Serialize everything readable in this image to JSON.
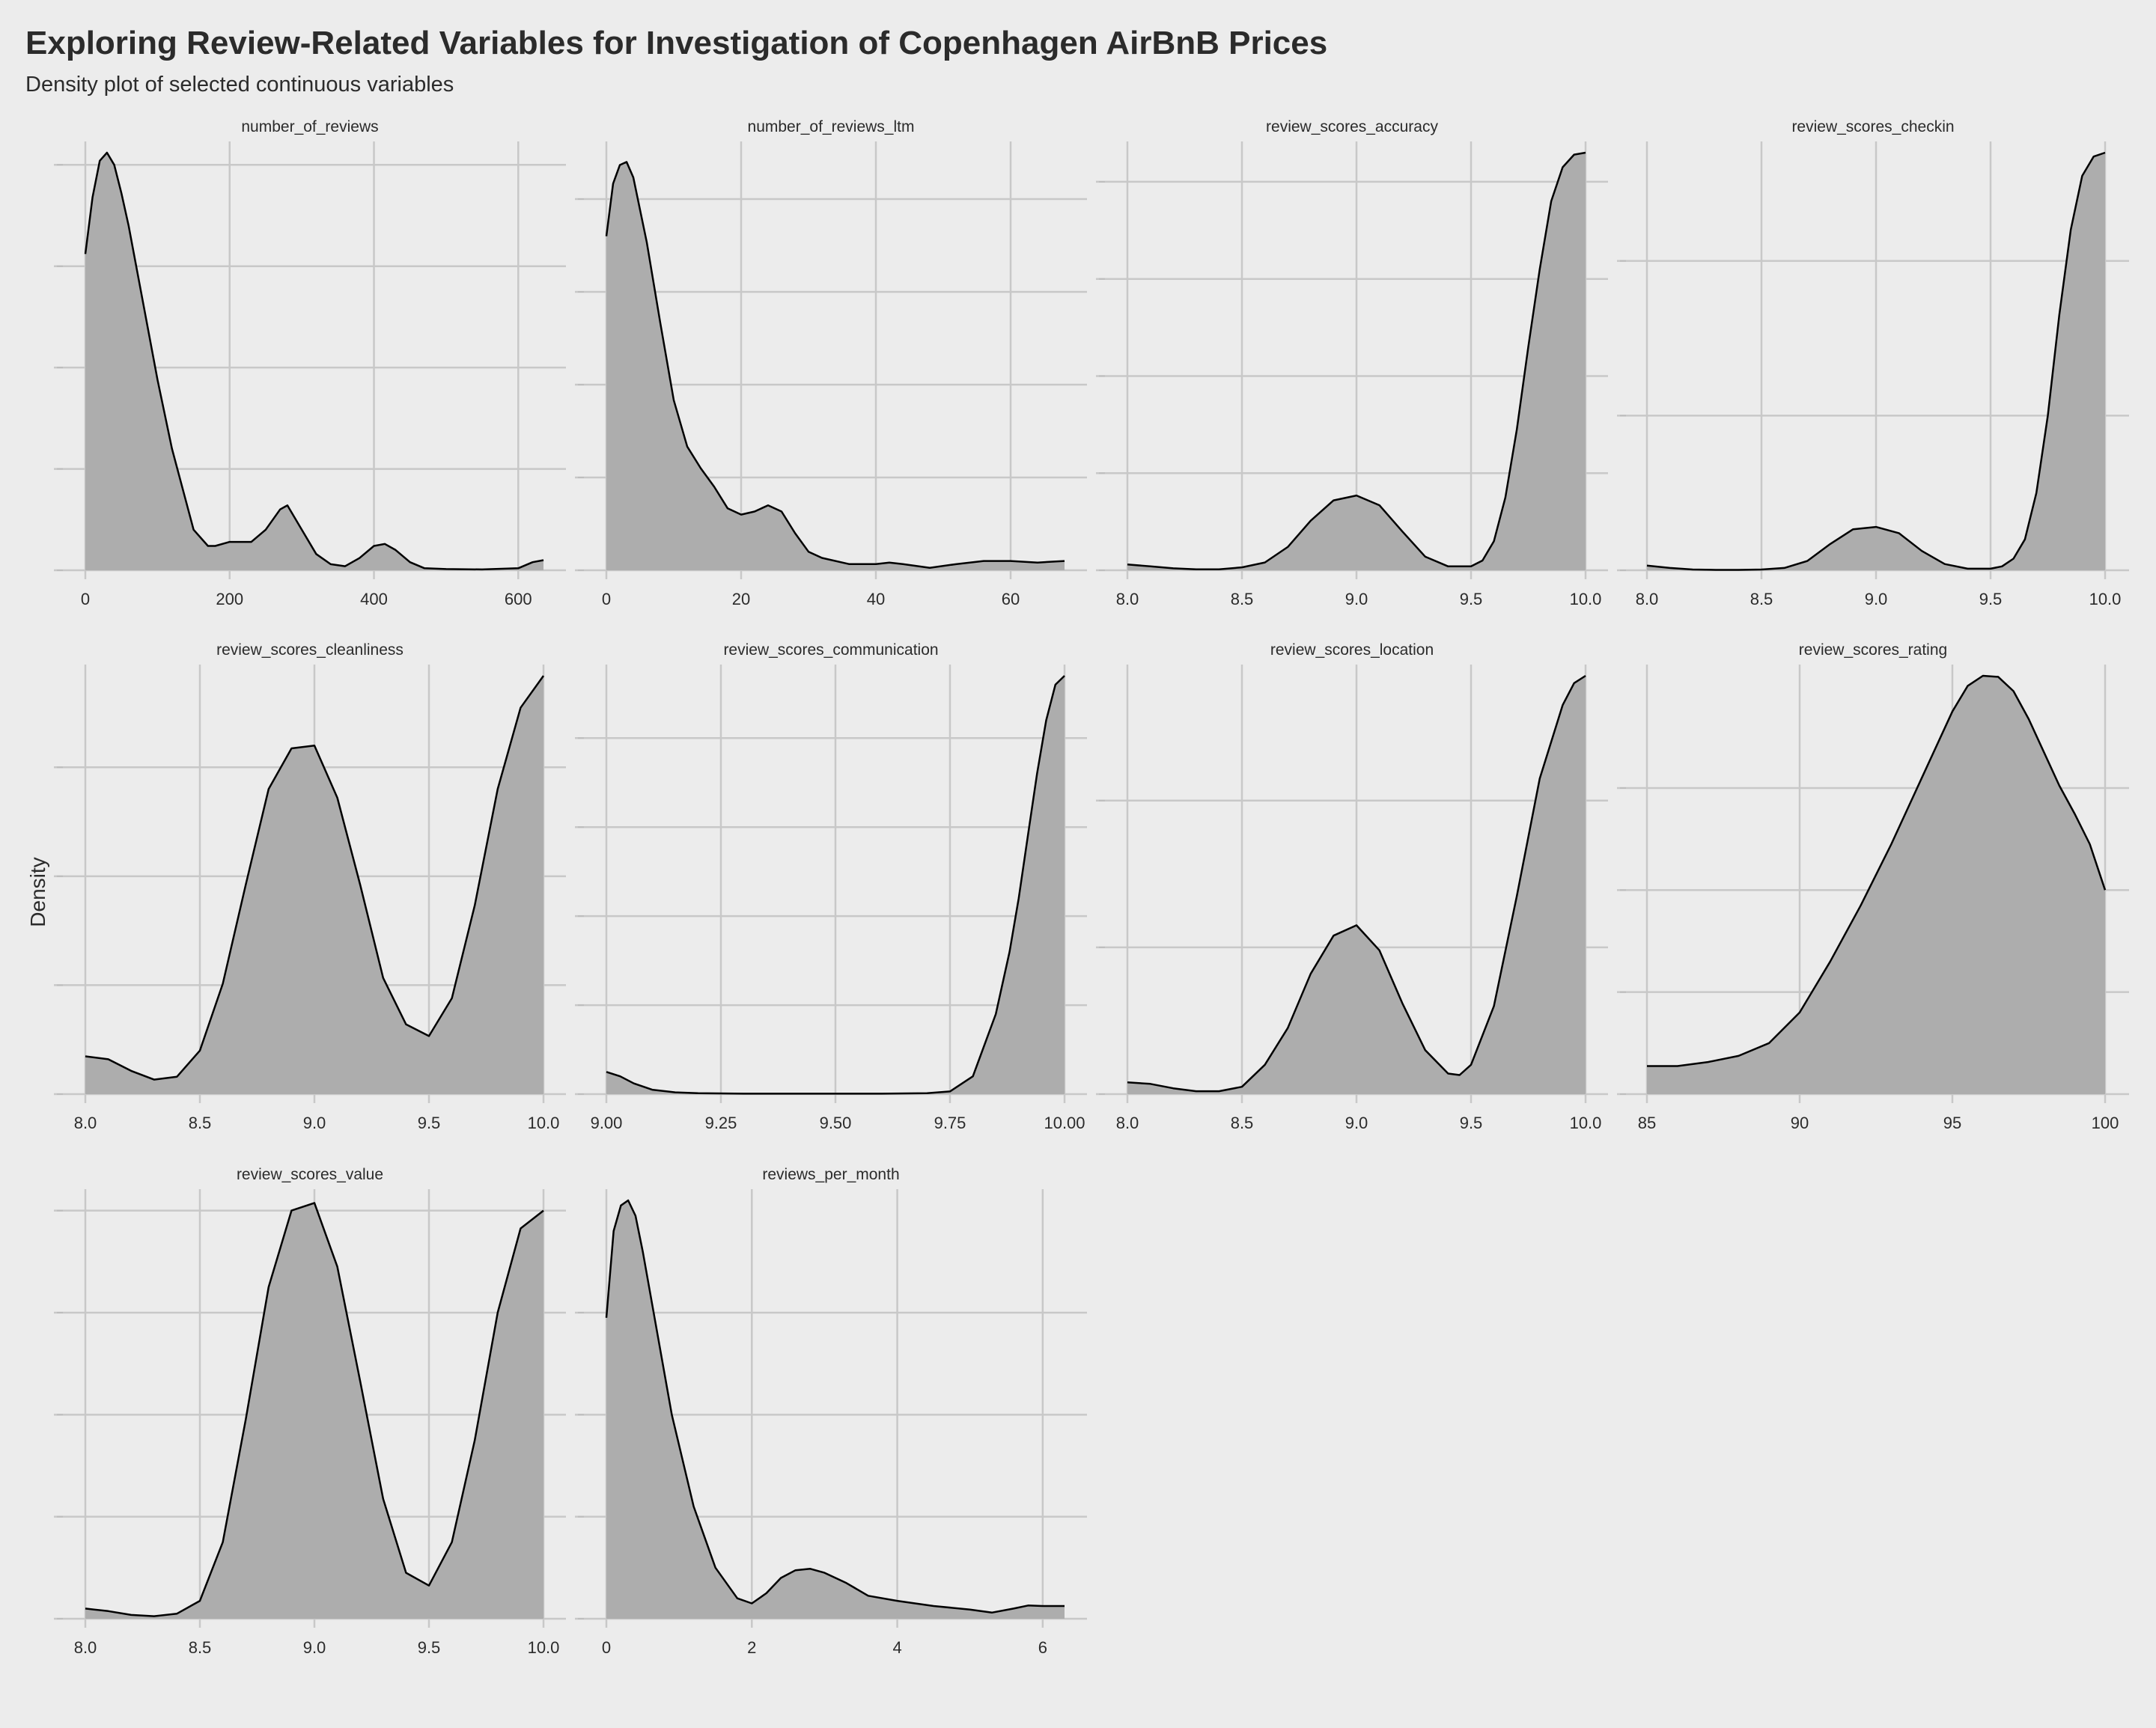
{
  "chart_data": {
    "type": "area",
    "title": "Exploring Review-Related Variables for Investigation of Copenhagen AirBnB Prices",
    "subtitle": "Density plot of selected continuous variables",
    "ylabel": "Density",
    "xlabel": "",
    "grid": true,
    "facets": [
      {
        "name": "number_of_reviews",
        "xlim": [
          0,
          635
        ],
        "ylim": [
          0,
          1.03
        ],
        "x_ticks": [
          0,
          200,
          400,
          600
        ],
        "x_tick_labels": [
          "0",
          "200",
          "400",
          "600"
        ],
        "y_gridlines": [
          0,
          0.25,
          0.5,
          0.75,
          1.0
        ],
        "x": [
          0,
          10,
          20,
          30,
          40,
          50,
          60,
          80,
          100,
          120,
          150,
          170,
          180,
          200,
          230,
          250,
          270,
          280,
          300,
          320,
          340,
          360,
          380,
          400,
          415,
          430,
          450,
          470,
          500,
          550,
          600,
          620,
          635
        ],
        "y": [
          0.78,
          0.92,
          1.01,
          1.03,
          1.0,
          0.93,
          0.85,
          0.66,
          0.47,
          0.3,
          0.1,
          0.06,
          0.06,
          0.07,
          0.07,
          0.1,
          0.15,
          0.16,
          0.1,
          0.04,
          0.015,
          0.01,
          0.03,
          0.06,
          0.065,
          0.05,
          0.02,
          0.005,
          0.003,
          0.002,
          0.005,
          0.02,
          0.025
        ]
      },
      {
        "name": "number_of_reviews_ltm",
        "xlim": [
          0,
          68
        ],
        "ylim": [
          0,
          0.135
        ],
        "x_ticks": [
          0,
          20,
          40,
          60
        ],
        "x_tick_labels": [
          "0",
          "20",
          "40",
          "60"
        ],
        "y_gridlines": [
          0,
          0.03,
          0.06,
          0.09,
          0.12
        ],
        "x": [
          0,
          1,
          2,
          3,
          4,
          6,
          8,
          10,
          12,
          14,
          16,
          18,
          20,
          22,
          24,
          26,
          28,
          30,
          32,
          36,
          40,
          42,
          44,
          48,
          52,
          56,
          60,
          64,
          68
        ],
        "y": [
          0.108,
          0.125,
          0.131,
          0.132,
          0.127,
          0.106,
          0.08,
          0.055,
          0.04,
          0.033,
          0.027,
          0.02,
          0.018,
          0.019,
          0.021,
          0.019,
          0.012,
          0.006,
          0.004,
          0.002,
          0.002,
          0.0025,
          0.002,
          0.0008,
          0.002,
          0.003,
          0.003,
          0.0025,
          0.003
        ]
      },
      {
        "name": "review_scores_accuracy",
        "xlim": [
          8,
          10
        ],
        "ylim": [
          0,
          4.3
        ],
        "x_ticks": [
          8,
          8.5,
          9,
          9.5,
          10
        ],
        "x_tick_labels": [
          "8.0",
          "8.5",
          "9.0",
          "9.5",
          "10.0"
        ],
        "y_gridlines": [
          0,
          1,
          2,
          3,
          4
        ],
        "x": [
          8.0,
          8.1,
          8.2,
          8.3,
          8.4,
          8.5,
          8.6,
          8.7,
          8.8,
          8.9,
          9.0,
          9.1,
          9.2,
          9.3,
          9.4,
          9.5,
          9.55,
          9.6,
          9.65,
          9.7,
          9.75,
          9.8,
          9.85,
          9.9,
          9.95,
          10.0
        ],
        "y": [
          0.06,
          0.04,
          0.02,
          0.01,
          0.01,
          0.03,
          0.08,
          0.24,
          0.51,
          0.72,
          0.77,
          0.67,
          0.4,
          0.14,
          0.04,
          0.04,
          0.1,
          0.3,
          0.75,
          1.45,
          2.3,
          3.1,
          3.8,
          4.15,
          4.28,
          4.3
        ]
      },
      {
        "name": "review_scores_checkin",
        "xlim": [
          8,
          10
        ],
        "ylim": [
          0,
          5.4
        ],
        "x_ticks": [
          8,
          8.5,
          9,
          9.5,
          10
        ],
        "x_tick_labels": [
          "8.0",
          "8.5",
          "9.0",
          "9.5",
          "10.0"
        ],
        "y_gridlines": [
          0,
          2,
          4
        ],
        "x": [
          8.0,
          8.1,
          8.2,
          8.3,
          8.4,
          8.5,
          8.6,
          8.7,
          8.8,
          8.9,
          9.0,
          9.1,
          9.2,
          9.3,
          9.4,
          9.5,
          9.55,
          9.6,
          9.65,
          9.7,
          9.75,
          9.8,
          9.85,
          9.9,
          9.95,
          10.0
        ],
        "y": [
          0.06,
          0.03,
          0.01,
          0.005,
          0.005,
          0.01,
          0.03,
          0.12,
          0.34,
          0.53,
          0.56,
          0.48,
          0.25,
          0.08,
          0.02,
          0.02,
          0.05,
          0.15,
          0.4,
          1.0,
          2.0,
          3.3,
          4.4,
          5.1,
          5.35,
          5.4
        ]
      },
      {
        "name": "review_scores_cleanliness",
        "xlim": [
          8,
          10
        ],
        "ylim": [
          0,
          1.44
        ],
        "x_ticks": [
          8,
          8.5,
          9,
          9.5,
          10
        ],
        "x_tick_labels": [
          "8.0",
          "8.5",
          "9.0",
          "9.5",
          "10.0"
        ],
        "y_gridlines": [
          0,
          0.375,
          0.75,
          1.125
        ],
        "x": [
          8.0,
          8.1,
          8.2,
          8.3,
          8.4,
          8.5,
          8.6,
          8.7,
          8.8,
          8.9,
          9.0,
          9.1,
          9.2,
          9.3,
          9.4,
          9.5,
          9.6,
          9.7,
          9.8,
          9.9,
          10.0
        ],
        "y": [
          0.13,
          0.12,
          0.08,
          0.05,
          0.06,
          0.15,
          0.38,
          0.72,
          1.05,
          1.19,
          1.2,
          1.02,
          0.72,
          0.4,
          0.24,
          0.2,
          0.33,
          0.65,
          1.05,
          1.33,
          1.44
        ]
      },
      {
        "name": "review_scores_communication",
        "xlim": [
          9,
          10
        ],
        "ylim": [
          0,
          4.7
        ],
        "x_ticks": [
          9,
          9.25,
          9.5,
          9.75,
          10
        ],
        "x_tick_labels": [
          "9.00",
          "9.25",
          "9.50",
          "9.75",
          "10.00"
        ],
        "y_gridlines": [
          0,
          1,
          2,
          3,
          4
        ],
        "x": [
          9.0,
          9.03,
          9.06,
          9.1,
          9.15,
          9.2,
          9.3,
          9.4,
          9.5,
          9.6,
          9.7,
          9.75,
          9.8,
          9.85,
          9.88,
          9.9,
          9.92,
          9.94,
          9.96,
          9.98,
          10.0
        ],
        "y": [
          0.25,
          0.2,
          0.12,
          0.05,
          0.02,
          0.01,
          0.005,
          0.005,
          0.005,
          0.005,
          0.01,
          0.03,
          0.2,
          0.9,
          1.6,
          2.2,
          2.9,
          3.6,
          4.2,
          4.6,
          4.7
        ]
      },
      {
        "name": "review_scores_location",
        "xlim": [
          8,
          10
        ],
        "ylim": [
          0,
          2.85
        ],
        "x_ticks": [
          8,
          8.5,
          9,
          9.5,
          10
        ],
        "x_tick_labels": [
          "8.0",
          "8.5",
          "9.0",
          "9.5",
          "10.0"
        ],
        "y_gridlines": [
          0,
          1,
          2
        ],
        "x": [
          8.0,
          8.1,
          8.2,
          8.3,
          8.4,
          8.5,
          8.6,
          8.7,
          8.8,
          8.9,
          9.0,
          9.1,
          9.2,
          9.3,
          9.4,
          9.45,
          9.5,
          9.6,
          9.7,
          9.8,
          9.9,
          9.95,
          10.0
        ],
        "y": [
          0.08,
          0.07,
          0.04,
          0.02,
          0.02,
          0.05,
          0.2,
          0.45,
          0.82,
          1.08,
          1.15,
          0.98,
          0.62,
          0.3,
          0.14,
          0.13,
          0.2,
          0.6,
          1.35,
          2.15,
          2.65,
          2.8,
          2.85
        ]
      },
      {
        "name": "review_scores_rating",
        "xlim": [
          85,
          100
        ],
        "ylim": [
          0,
          0.082
        ],
        "x_ticks": [
          85,
          90,
          95,
          100
        ],
        "x_tick_labels": [
          "85",
          "90",
          "95",
          "100"
        ],
        "y_gridlines": [
          0,
          0.02,
          0.04,
          0.06
        ],
        "x": [
          85,
          86,
          87,
          88,
          89,
          90,
          91,
          92,
          93,
          94,
          95,
          95.5,
          96,
          96.5,
          97,
          97.5,
          98,
          98.5,
          99,
          99.5,
          100
        ],
        "y": [
          0.0055,
          0.0055,
          0.0063,
          0.0075,
          0.01,
          0.016,
          0.026,
          0.037,
          0.049,
          0.062,
          0.075,
          0.08,
          0.082,
          0.0818,
          0.079,
          0.0735,
          0.067,
          0.0605,
          0.055,
          0.049,
          0.04
        ]
      },
      {
        "name": "review_scores_value",
        "xlim": [
          8,
          10
        ],
        "ylim": [
          0,
          1.64
        ],
        "x_ticks": [
          8,
          8.5,
          9,
          9.5,
          10
        ],
        "x_tick_labels": [
          "8.0",
          "8.5",
          "9.0",
          "9.5",
          "10.0"
        ],
        "y_gridlines": [
          0,
          0.4,
          0.8,
          1.2,
          1.6
        ],
        "x": [
          8.0,
          8.1,
          8.2,
          8.3,
          8.4,
          8.5,
          8.6,
          8.7,
          8.8,
          8.9,
          9.0,
          9.1,
          9.2,
          9.3,
          9.4,
          9.5,
          9.6,
          9.7,
          9.8,
          9.9,
          10.0
        ],
        "y": [
          0.04,
          0.03,
          0.015,
          0.01,
          0.02,
          0.07,
          0.3,
          0.78,
          1.3,
          1.6,
          1.63,
          1.38,
          0.93,
          0.47,
          0.18,
          0.13,
          0.3,
          0.7,
          1.2,
          1.53,
          1.6
        ]
      },
      {
        "name": "reviews_per_month",
        "xlim": [
          0,
          6.3
        ],
        "ylim": [
          0,
          0.82
        ],
        "x_ticks": [
          0,
          2,
          4,
          6
        ],
        "x_tick_labels": [
          "0",
          "2",
          "4",
          "6"
        ],
        "y_gridlines": [
          0,
          0.2,
          0.4,
          0.6
        ],
        "x": [
          0,
          0.1,
          0.2,
          0.3,
          0.4,
          0.5,
          0.7,
          0.9,
          1.2,
          1.5,
          1.8,
          2.0,
          2.2,
          2.4,
          2.6,
          2.8,
          3.0,
          3.3,
          3.6,
          4.0,
          4.5,
          5.0,
          5.3,
          5.6,
          5.8,
          6.0,
          6.3
        ],
        "y": [
          0.59,
          0.76,
          0.81,
          0.82,
          0.79,
          0.72,
          0.56,
          0.4,
          0.22,
          0.1,
          0.04,
          0.03,
          0.05,
          0.08,
          0.095,
          0.098,
          0.09,
          0.07,
          0.045,
          0.035,
          0.025,
          0.018,
          0.012,
          0.02,
          0.026,
          0.025,
          0.025
        ]
      }
    ]
  }
}
